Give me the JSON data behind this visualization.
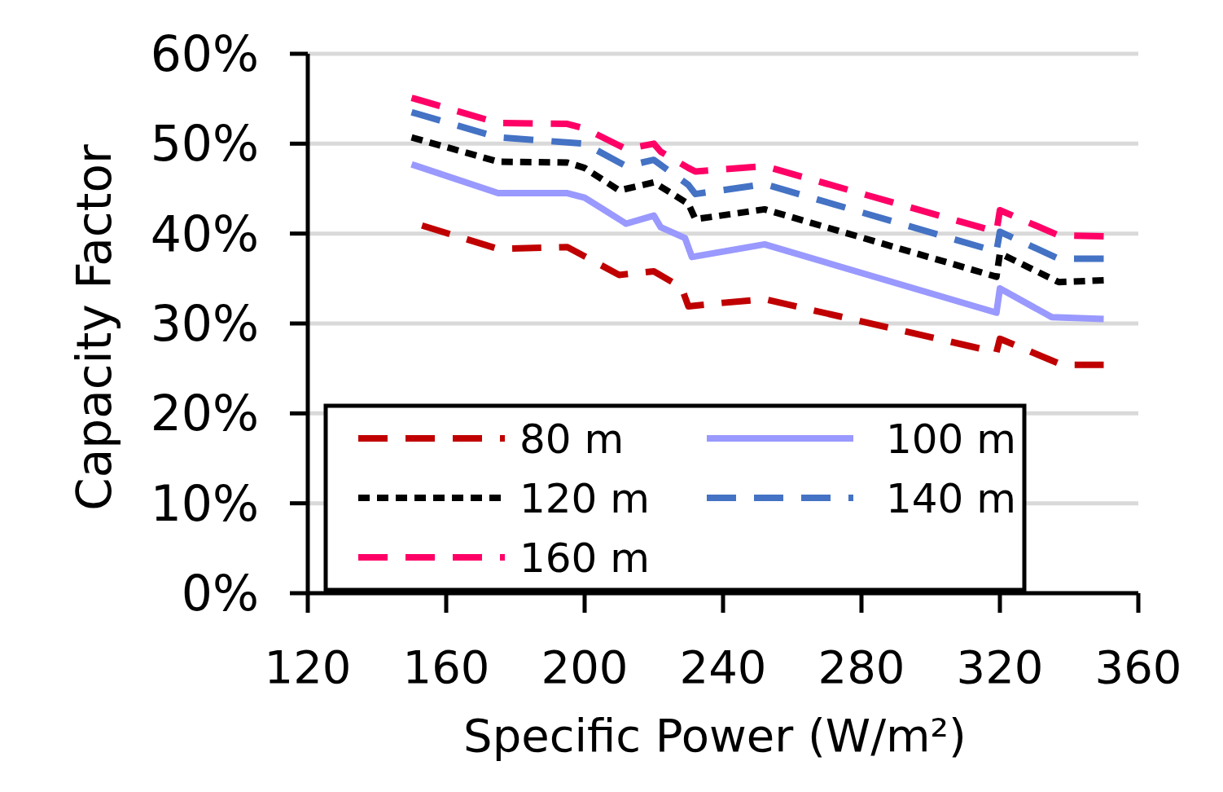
{
  "chart_data": {
    "type": "line",
    "xlabel": "Specific Power (W/m²)",
    "ylabel": "Capacity Factor",
    "xlim": [
      120,
      360
    ],
    "xticks": [
      120,
      160,
      200,
      240,
      280,
      320,
      360
    ],
    "ylim": [
      0,
      60
    ],
    "yticks": [
      {
        "value": 0,
        "label": "0%"
      },
      {
        "value": 10,
        "label": "10%"
      },
      {
        "value": 20,
        "label": "20%"
      },
      {
        "value": 30,
        "label": "30%"
      },
      {
        "value": 40,
        "label": "40%"
      },
      {
        "value": 50,
        "label": "50%"
      },
      {
        "value": 60,
        "label": "60%"
      }
    ],
    "grid": "y",
    "legend": "bottom",
    "series": [
      {
        "name": "80 m",
        "color": "#c00000",
        "line_style": "dashed",
        "x": [
          153,
          175,
          195,
          210,
          220,
          228,
          230,
          240,
          252,
          319,
          320,
          338,
          350
        ],
        "values": [
          40.9,
          38.3,
          38.5,
          35.4,
          35.8,
          34,
          31.9,
          32.3,
          32.7,
          26.8,
          28.3,
          25.4,
          25.4
        ]
      },
      {
        "name": "100 m",
        "color": "#9999ff",
        "line_style": "solid",
        "x": [
          150,
          175,
          195,
          200,
          212,
          220,
          222,
          229,
          231,
          252,
          319,
          320,
          335,
          350
        ],
        "values": [
          47.7,
          44.5,
          44.5,
          44,
          41.1,
          42,
          40.7,
          39.5,
          37.4,
          38.8,
          31.2,
          33.9,
          30.7,
          30.5
        ]
      },
      {
        "name": "120 m",
        "color": "#000000",
        "line_style": "dotted",
        "x": [
          150,
          175,
          195,
          200,
          210,
          220,
          230,
          232,
          252,
          319,
          320,
          337,
          350
        ],
        "values": [
          50.7,
          48,
          47.9,
          47.3,
          44.8,
          45.7,
          43.3,
          41.6,
          42.7,
          35.2,
          37.8,
          34.6,
          34.8
        ]
      },
      {
        "name": "140 m",
        "color": "#4472c4",
        "line_style": "dashed",
        "x": [
          150,
          175,
          200,
          212,
          220,
          230,
          232,
          252,
          319,
          320,
          337,
          350
        ],
        "values": [
          53.5,
          50.7,
          50,
          47.5,
          48.2,
          45.4,
          44.4,
          45.5,
          38,
          40.2,
          37.2,
          37.2
        ]
      },
      {
        "name": "160 m",
        "color": "#ff0066",
        "line_style": "dashed",
        "x": [
          150,
          175,
          195,
          200,
          212,
          220,
          222,
          230,
          232,
          252,
          319,
          320,
          337,
          350
        ],
        "values": [
          55.1,
          52.3,
          52.2,
          51.7,
          49.4,
          50,
          49.1,
          47.3,
          46.9,
          47.5,
          40.2,
          42.6,
          39.8,
          39.7
        ]
      }
    ]
  }
}
